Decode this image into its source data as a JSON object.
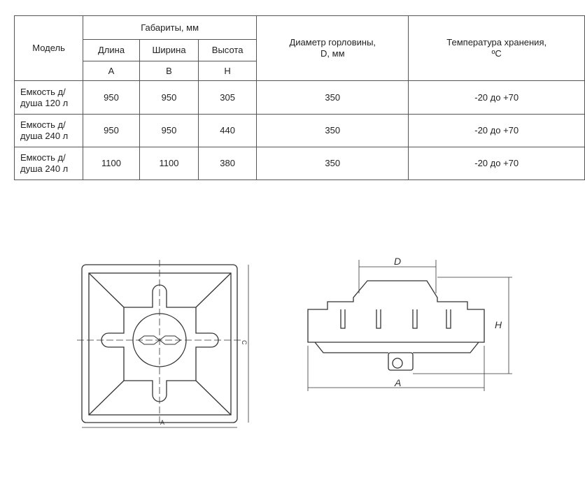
{
  "table": {
    "headers": {
      "model": "Модель",
      "dims": "Габариты, мм",
      "length": "Длина",
      "width": "Ширина",
      "height": "Высота",
      "a": "A",
      "b": "B",
      "h": "H",
      "diameter": "Диаметр горловины, D, мм",
      "temperature": "Температура хранения, ºC"
    },
    "rows": [
      {
        "model": "Емкость д/душа 120 л",
        "a": "950",
        "b": "950",
        "h": "305",
        "d": "350",
        "t": "-20 до +70"
      },
      {
        "model": "Емкость д/душа 240 л",
        "a": "950",
        "b": "950",
        "h": "440",
        "d": "350",
        "t": "-20 до +70"
      },
      {
        "model": "Емкость д/душа 240 л",
        "a": "1100",
        "b": "1100",
        "h": "380",
        "d": "350",
        "t": "-20 до +70"
      }
    ]
  },
  "drawings": {
    "top_view": {
      "dim_width": "А",
      "dim_depth": "С"
    },
    "side_view": {
      "dim_d": "D",
      "dim_h": "H",
      "dim_a": "A"
    }
  }
}
